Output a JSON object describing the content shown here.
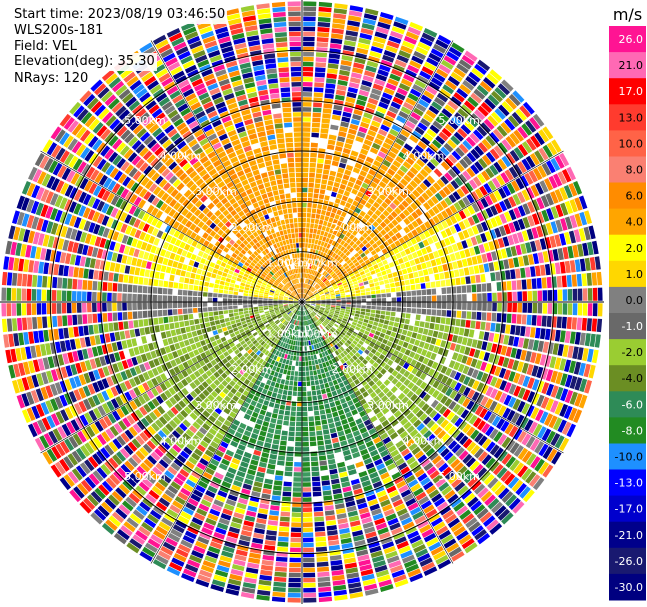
{
  "header": {
    "start_time": "Start time: 2023/08/19 03:46:50",
    "instrument": "WLS200s-181",
    "field": "Field: VEL",
    "elevation": "Elevation(deg): 35.30",
    "nrays": "NRays: 120"
  },
  "chart_data": {
    "type": "ppi-scan",
    "title": "",
    "rays": 120,
    "max_range_km": 3.6,
    "range_rings": [
      {
        "value": 1.0,
        "label": "1.00km"
      },
      {
        "value": 2.0,
        "label": "2.00km"
      },
      {
        "value": 3.0,
        "label": "3.00km"
      },
      {
        "value": 4.0,
        "label": "4.00km"
      },
      {
        "value": 5.0,
        "label": "5.00km"
      }
    ],
    "colorbar": {
      "unit": "m/s",
      "ticks": [
        "26.0",
        "21.0",
        "17.0",
        "13.0",
        "10.0",
        "8.0",
        "6.0",
        "4.0",
        "2.0",
        "1.0",
        "0.0",
        "-1.0",
        "-2.0",
        "-4.0",
        "-6.0",
        "-8.0",
        "-10.0",
        "-13.0",
        "-17.0",
        "-21.0",
        "-26.0",
        "-30.0"
      ],
      "colors": [
        "#ff1493",
        "#ff69b4",
        "#ff0000",
        "#ff3b2e",
        "#ff6347",
        "#fa8072",
        "#ff8c00",
        "#ffa500",
        "#ffff00",
        "#ffd700",
        "#808080",
        "#696969",
        "#9acd32",
        "#6b8e23",
        "#2e8b57",
        "#228b22",
        "#1e90ff",
        "#0000ff",
        "#0000cd",
        "#00008b",
        "#191970",
        "#000080"
      ]
    },
    "sectors": [
      {
        "from_deg": -60,
        "to_deg": 60,
        "velocity": "3 to 5",
        "color_name": "orange"
      },
      {
        "from_deg": 60,
        "to_deg": 85,
        "velocity": "1 to 3",
        "color_name": "yellow"
      },
      {
        "from_deg": 85,
        "to_deg": 95,
        "velocity": "-1 to 1",
        "color_name": "gray"
      },
      {
        "from_deg": 95,
        "to_deg": 150,
        "velocity": "-2 to -4",
        "color_name": "olive"
      },
      {
        "from_deg": 150,
        "to_deg": 210,
        "velocity": "-6 to -8",
        "color_name": "green"
      },
      {
        "from_deg": 210,
        "to_deg": 265,
        "velocity": "-2 to -4",
        "color_name": "olive"
      },
      {
        "from_deg": 265,
        "to_deg": 275,
        "velocity": "-1 to 1",
        "color_name": "gray"
      },
      {
        "from_deg": 275,
        "to_deg": 300,
        "velocity": "1 to 3",
        "color_name": "yellow"
      }
    ],
    "noise_beyond_km": 2.2
  }
}
